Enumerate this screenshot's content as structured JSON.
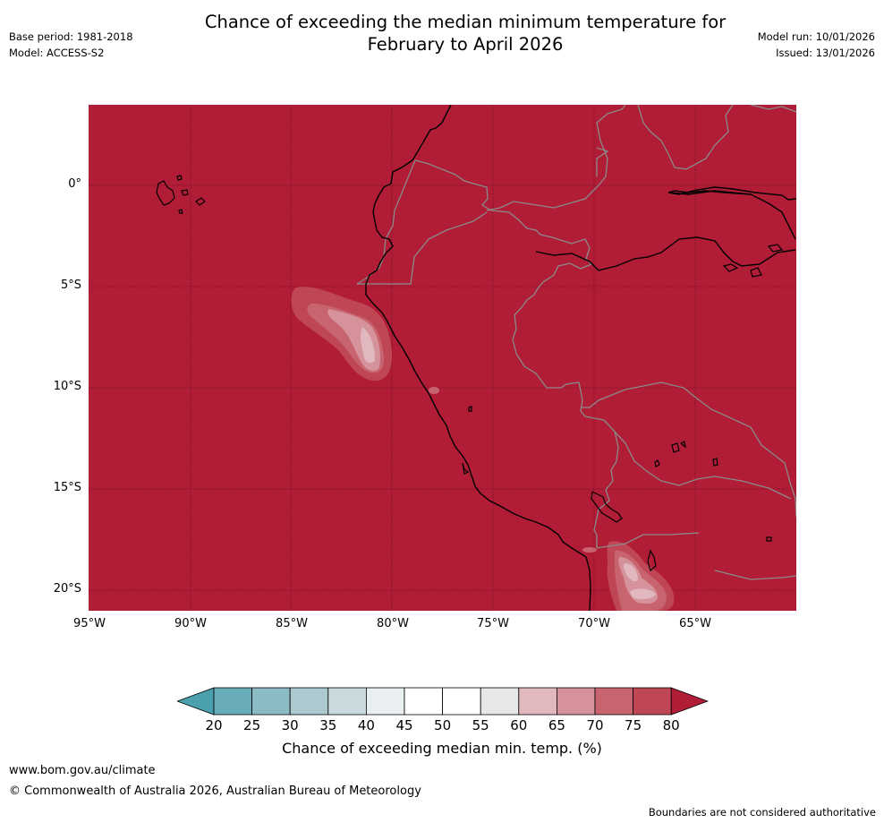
{
  "title": {
    "line1": "Chance of exceeding the median minimum temperature for",
    "line2": "February to April 2026"
  },
  "meta": {
    "base_period": "Base period: 1981-2018",
    "model": "Model: ACCESS-S2",
    "model_run": "Model run: 10/01/2026",
    "issued": "Issued: 13/01/2026"
  },
  "map": {
    "region": "Western South America (Ecuador, Peru, Bolivia) and adjacent Pacific",
    "background_color": "#b11c37",
    "lat_labels": [
      "0°",
      "5°S",
      "10°S",
      "15°S",
      "20°S"
    ],
    "lon_labels": [
      "95°W",
      "90°W",
      "85°W",
      "80°W",
      "75°W",
      "70°W",
      "65°W"
    ]
  },
  "colorbar": {
    "ticks": [
      "20",
      "25",
      "30",
      "35",
      "40",
      "45",
      "50",
      "55",
      "60",
      "65",
      "70",
      "75",
      "80"
    ],
    "colors": {
      "below_20": "#4aa0ad",
      "20_25": "#68adb9",
      "25_30": "#8bbbc5",
      "30_35": "#acc9cf",
      "35_40": "#c9d9de",
      "40_45": "#e9eff1",
      "45_50": "#ffffff",
      "50_55": "#ffffff",
      "55_60": "#e7e7e7",
      "60_65": "#e2b8bf",
      "65_70": "#d5929b",
      "70_75": "#c8646f",
      "75_80": "#bf4655",
      "above_80": "#b11c37"
    },
    "label": "Chance of exceeding median min. temp. (%)"
  },
  "footer": {
    "url": "www.bom.gov.au/climate",
    "copyright": "© Commonwealth of Australia 2026, Australian Bureau of Meteorology",
    "disclaimer": "Boundaries are not considered authoritative"
  }
}
